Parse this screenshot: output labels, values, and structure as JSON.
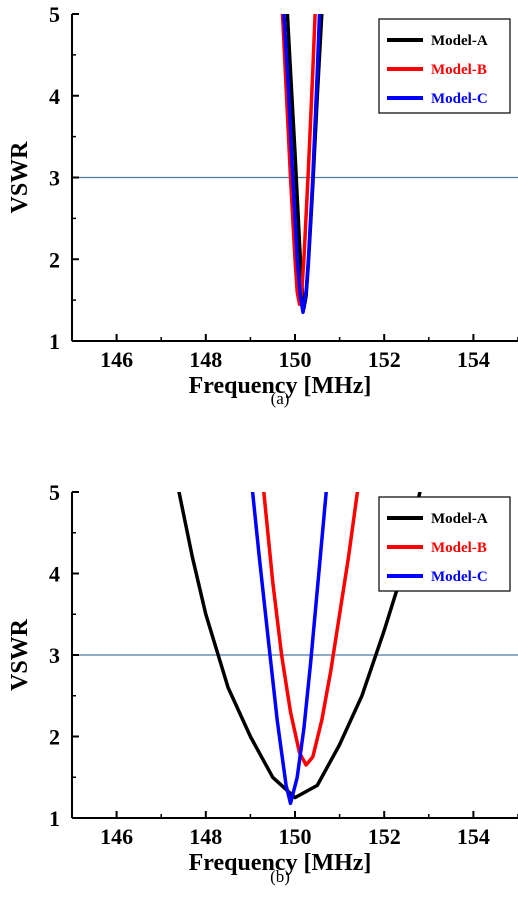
{
  "chart_data": [
    {
      "type": "line",
      "caption": "(a)",
      "xlabel": "Frequency [MHz]",
      "ylabel": "VSWR",
      "xlim": [
        145,
        155
      ],
      "ylim": [
        1,
        5
      ],
      "xticks": [
        146,
        148,
        150,
        152,
        154
      ],
      "yticks": [
        1,
        2,
        3,
        4,
        5
      ],
      "reference_line": {
        "y": 3,
        "color": "#4a7ba7"
      },
      "legend_position": "top-right",
      "series": [
        {
          "name": "Model-A",
          "color": "#000000",
          "x": [
            149.83,
            149.9,
            150.0,
            150.1,
            150.15,
            150.2,
            150.25,
            150.3,
            150.4,
            150.5,
            150.6
          ],
          "y": [
            5.0,
            4.3,
            3.3,
            2.2,
            1.7,
            1.4,
            1.55,
            1.95,
            2.9,
            4.0,
            5.0
          ]
        },
        {
          "name": "Model-B",
          "color": "#ff0000",
          "x": [
            149.72,
            149.8,
            149.9,
            150.0,
            150.05,
            150.1,
            150.15,
            150.2,
            150.3,
            150.4,
            150.45
          ],
          "y": [
            5.0,
            4.1,
            3.0,
            2.0,
            1.6,
            1.45,
            1.6,
            2.0,
            3.1,
            4.3,
            5.0
          ]
        },
        {
          "name": "Model-C",
          "color": "#0000ff",
          "x": [
            149.75,
            149.85,
            149.95,
            150.05,
            150.12,
            150.18,
            150.25,
            150.3,
            150.4,
            150.5,
            150.55
          ],
          "y": [
            5.0,
            4.1,
            3.0,
            2.0,
            1.55,
            1.35,
            1.6,
            2.0,
            3.0,
            4.3,
            5.0
          ]
        }
      ]
    },
    {
      "type": "line",
      "caption": "(b)",
      "xlabel": "Frequency [MHz]",
      "ylabel": "VSWR",
      "xlim": [
        145,
        155
      ],
      "ylim": [
        1,
        5
      ],
      "xticks": [
        146,
        148,
        150,
        152,
        154
      ],
      "yticks": [
        1,
        2,
        3,
        4,
        5
      ],
      "reference_line": {
        "y": 3,
        "color": "#4a7ba7"
      },
      "legend_position": "top-right",
      "series": [
        {
          "name": "Model-A",
          "color": "#000000",
          "x": [
            147.4,
            147.7,
            148.0,
            148.5,
            149.0,
            149.5,
            150.0,
            150.5,
            151.0,
            151.5,
            152.0,
            152.4,
            152.8
          ],
          "y": [
            5.0,
            4.2,
            3.5,
            2.6,
            2.0,
            1.5,
            1.25,
            1.4,
            1.9,
            2.5,
            3.3,
            4.0,
            5.0
          ]
        },
        {
          "name": "Model-B",
          "color": "#ff0000",
          "x": [
            149.3,
            149.5,
            149.7,
            149.9,
            150.1,
            150.25,
            150.4,
            150.6,
            150.8,
            151.0,
            151.2,
            151.4
          ],
          "y": [
            5.0,
            3.9,
            3.0,
            2.3,
            1.8,
            1.65,
            1.75,
            2.2,
            2.8,
            3.5,
            4.2,
            5.0
          ]
        },
        {
          "name": "Model-C",
          "color": "#0000ff",
          "x": [
            149.05,
            149.2,
            149.4,
            149.6,
            149.8,
            149.9,
            150.05,
            150.2,
            150.35,
            150.5,
            150.7
          ],
          "y": [
            5.0,
            4.2,
            3.2,
            2.2,
            1.4,
            1.18,
            1.5,
            2.1,
            2.9,
            3.8,
            5.0
          ]
        }
      ]
    }
  ]
}
